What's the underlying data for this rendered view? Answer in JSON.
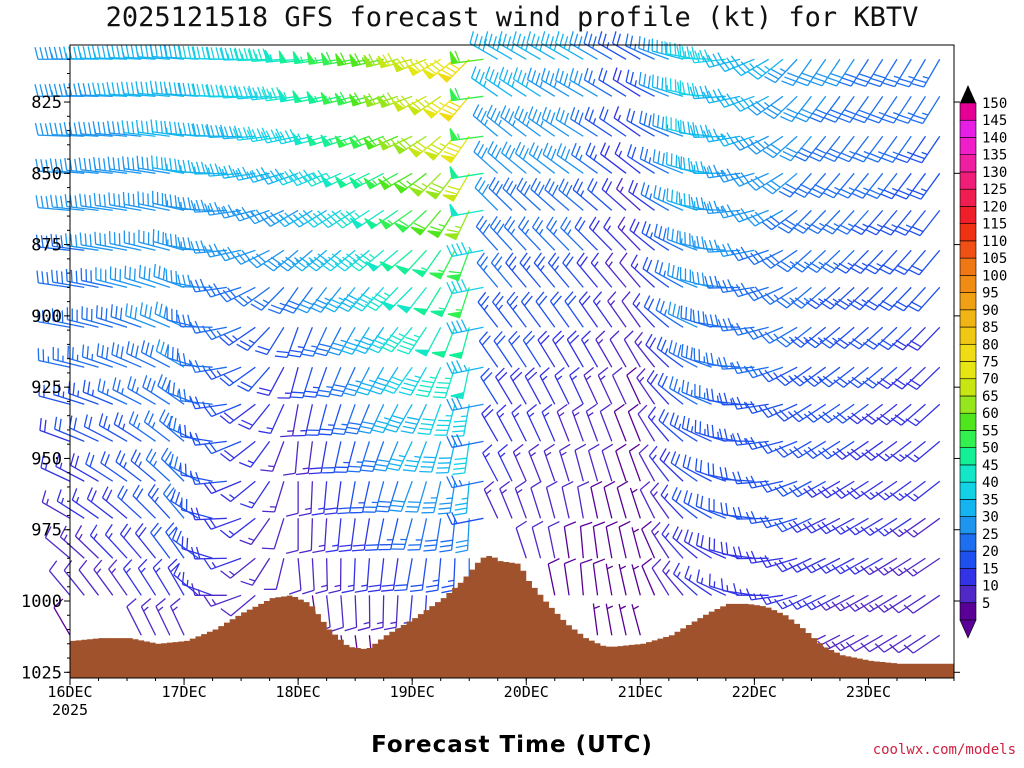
{
  "chart_data": {
    "type": "wind_barb_time_height",
    "title": "2025121518 GFS forecast wind profile (kt) for KBTV",
    "xlabel": "Forecast Time (UTC)",
    "ylabel": "",
    "y_units": "hPa",
    "ylim": [
      1027,
      805
    ],
    "yticks": [
      825,
      850,
      875,
      900,
      925,
      950,
      975,
      1000,
      1025
    ],
    "x_units": "hours_since_2025121518",
    "xlim": [
      -18,
      168
    ],
    "xticks": [
      {
        "hour": -18,
        "label": "16DEC",
        "sublabel": "2025"
      },
      {
        "hour": 6,
        "label": "17DEC"
      },
      {
        "hour": 30,
        "label": "18DEC"
      },
      {
        "hour": 54,
        "label": "19DEC"
      },
      {
        "hour": 78,
        "label": "20DEC"
      },
      {
        "hour": 102,
        "label": "21DEC"
      },
      {
        "hour": 126,
        "label": "22DEC"
      },
      {
        "hour": 150,
        "label": "23DEC"
      }
    ],
    "levels": [
      810,
      823,
      837,
      850,
      863,
      877,
      890,
      904,
      918,
      931,
      944,
      958,
      971,
      985,
      998,
      1012,
      1025
    ],
    "times": [
      -18,
      -15,
      -12,
      -9,
      -6,
      -3,
      0,
      3,
      6,
      9,
      12,
      15,
      18,
      21,
      24,
      27,
      30,
      33,
      36,
      39,
      42,
      45,
      48,
      51,
      54,
      57,
      60,
      63,
      66,
      69,
      72,
      75,
      78,
      81,
      84,
      87,
      90,
      93,
      96,
      99,
      102,
      105,
      108,
      111,
      114,
      117,
      120,
      123,
      126,
      129,
      132,
      135,
      138,
      141,
      144,
      147,
      150,
      153,
      156,
      159,
      162,
      165
    ],
    "wind_keyframes": [
      {
        "hour": -18,
        "spd": [
          34,
          33,
          32,
          31,
          30,
          29,
          28,
          27,
          25,
          22,
          19,
          16,
          14,
          12,
          10,
          8,
          6
        ],
        "dir": [
          270,
          270,
          272,
          274,
          275,
          276,
          278,
          280,
          282,
          285,
          290,
          295,
          300,
          310,
          320,
          330,
          340
        ]
      },
      {
        "hour": 6,
        "spd": [
          38,
          37,
          36,
          35,
          34,
          33,
          32,
          31,
          30,
          29,
          28,
          27,
          25,
          22,
          18,
          14,
          10
        ],
        "dir": [
          275,
          276,
          278,
          280,
          283,
          286,
          290,
          295,
          300,
          305,
          310,
          315,
          320,
          325,
          330,
          335,
          340
        ]
      },
      {
        "hour": 30,
        "spd": [
          48,
          45,
          42,
          38,
          34,
          30,
          25,
          20,
          17,
          14,
          12,
          11,
          10,
          10,
          9,
          8,
          7
        ],
        "dir": [
          265,
          262,
          258,
          250,
          240,
          230,
          215,
          200,
          195,
          190,
          185,
          180,
          180,
          175,
          170,
          165,
          160
        ]
      },
      {
        "hour": 54,
        "spd": [
          70,
          68,
          65,
          60,
          55,
          50,
          48,
          45,
          42,
          38,
          35,
          30,
          25,
          20,
          15,
          10,
          8
        ],
        "dir": [
          255,
          250,
          245,
          240,
          235,
          230,
          225,
          220,
          215,
          210,
          205,
          200,
          195,
          190,
          185,
          180,
          175
        ]
      },
      {
        "hour": 66,
        "spd": [
          82,
          80,
          78,
          70,
          65,
          58,
          55,
          52,
          48,
          44,
          40,
          35,
          30,
          25,
          20,
          15,
          10
        ],
        "dir": [
          225,
          220,
          215,
          210,
          205,
          200,
          198,
          195,
          192,
          190,
          188,
          185,
          183,
          180,
          178,
          175,
          170
        ]
      },
      {
        "hour": 72,
        "spd": [
          38,
          36,
          34,
          32,
          30,
          28,
          26,
          24,
          22,
          20,
          18,
          16,
          14,
          12,
          10,
          8,
          6
        ],
        "dir": [
          300,
          305,
          310,
          312,
          315,
          318,
          320,
          322,
          325,
          328,
          330,
          332,
          335,
          335,
          335,
          335,
          335
        ]
      },
      {
        "hour": 90,
        "spd": [
          36,
          34,
          32,
          30,
          28,
          25,
          22,
          20,
          18,
          16,
          14,
          12,
          10,
          9,
          8,
          7,
          6
        ],
        "dir": [
          300,
          300,
          302,
          305,
          310,
          315,
          320,
          325,
          330,
          335,
          340,
          345,
          350,
          355,
          355,
          355,
          355
        ]
      },
      {
        "hour": 102,
        "spd": [
          20,
          18,
          16,
          15,
          14,
          13,
          12,
          11,
          10,
          9,
          8,
          8,
          7,
          7,
          6,
          6,
          5
        ],
        "dir": [
          300,
          302,
          305,
          308,
          312,
          316,
          320,
          325,
          330,
          335,
          338,
          340,
          342,
          345,
          345,
          345,
          345
        ]
      },
      {
        "hour": 114,
        "spd": [
          44,
          42,
          40,
          38,
          36,
          34,
          32,
          30,
          28,
          26,
          24,
          22,
          20,
          18,
          15,
          12,
          10
        ],
        "dir": [
          280,
          282,
          284,
          286,
          288,
          290,
          292,
          295,
          298,
          300,
          302,
          305,
          308,
          310,
          312,
          315,
          318
        ]
      },
      {
        "hour": 138,
        "spd": [
          32,
          31,
          30,
          29,
          28,
          27,
          26,
          25,
          24,
          23,
          22,
          21,
          20,
          18,
          16,
          14,
          12
        ],
        "dir": [
          215,
          218,
          220,
          222,
          225,
          228,
          230,
          232,
          235,
          238,
          240,
          242,
          245,
          245,
          245,
          245,
          245
        ]
      },
      {
        "hour": 165,
        "spd": [
          26,
          25,
          24,
          23,
          22,
          21,
          20,
          19,
          18,
          17,
          16,
          15,
          14,
          13,
          12,
          11,
          10
        ],
        "dir": [
          210,
          212,
          214,
          216,
          218,
          220,
          222,
          224,
          226,
          228,
          230,
          232,
          234,
          236,
          236,
          236,
          236
        ]
      }
    ],
    "terrain": {
      "hours": [
        -18,
        -12,
        -6,
        0,
        6,
        12,
        18,
        24,
        28,
        32,
        36,
        40,
        44,
        48,
        54,
        60,
        64,
        68,
        70,
        72,
        76,
        78,
        82,
        86,
        90,
        94,
        96,
        102,
        108,
        112,
        116,
        120,
        124,
        128,
        132,
        136,
        140,
        144,
        150,
        156,
        162,
        168
      ],
      "surface_pressure": [
        1014,
        1013,
        1013,
        1015,
        1014,
        1010,
        1004,
        999,
        998,
        1001,
        1010,
        1016,
        1017,
        1012,
        1006,
        999,
        993,
        985,
        984,
        986,
        987,
        993,
        1001,
        1008,
        1013,
        1016,
        1016,
        1015,
        1012,
        1008,
        1004,
        1001,
        1001,
        1002,
        1005,
        1010,
        1016,
        1019,
        1021,
        1022,
        1022,
        1022
      ]
    },
    "colorbar": {
      "units": "kt",
      "labels": [
        "150",
        "145",
        "140",
        "135",
        "130",
        "125",
        "120",
        "115",
        "110",
        "105",
        "100",
        "95",
        "90",
        "85",
        "80",
        "75",
        "70",
        "65",
        "60",
        "55",
        "50",
        "45",
        "40",
        "35",
        "30",
        "25",
        "20",
        "15",
        "10",
        "5"
      ],
      "colors": [
        "#5a0096",
        "#5028c8",
        "#3232e6",
        "#1e50f0",
        "#1e6ef0",
        "#1e96f0",
        "#14b4f0",
        "#14d2e6",
        "#14e6c8",
        "#14f096",
        "#32f050",
        "#50e61e",
        "#96e61e",
        "#c8e614",
        "#e6e614",
        "#f0dc14",
        "#f0c814",
        "#f0b414",
        "#f0a014",
        "#f08c14",
        "#f07814",
        "#f05014",
        "#f03214",
        "#f01e28",
        "#f01e50",
        "#f01e78",
        "#f01ea0",
        "#f01ec8",
        "#e61ee6",
        "#e60096"
      ]
    },
    "terrain_color": "#a0522d"
  },
  "credit": "coolwx.com/models"
}
